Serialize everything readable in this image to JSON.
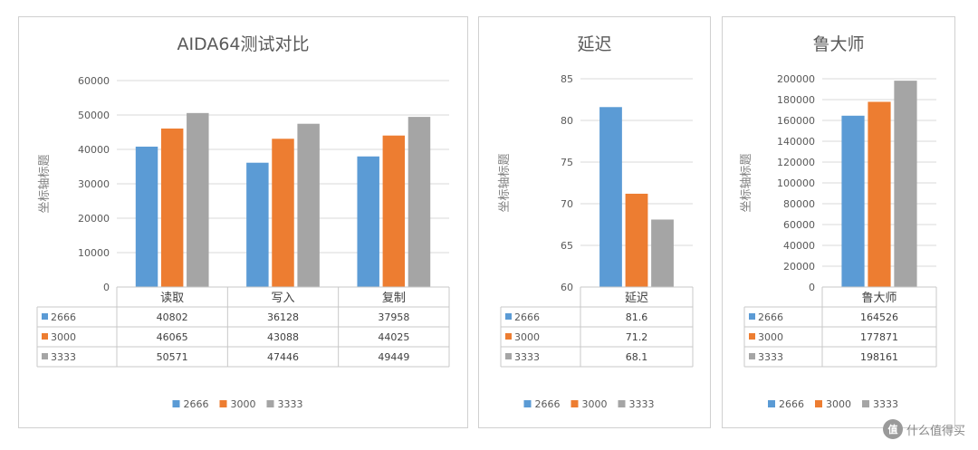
{
  "colors": {
    "s2666": "#5b9bd5",
    "s3000": "#ed7d31",
    "s3333": "#a5a5a5"
  },
  "watermark": {
    "icon": "值",
    "text": "什么值得买"
  },
  "chart_data": [
    {
      "type": "bar",
      "title": "AIDA64测试对比",
      "ylabel": "坐标轴标题",
      "ylim": [
        0,
        60000
      ],
      "yticks": [
        0,
        10000,
        20000,
        30000,
        40000,
        50000,
        60000
      ],
      "categories": [
        "读取",
        "写入",
        "复制"
      ],
      "series": [
        {
          "name": "2666",
          "values": [
            40802,
            36128,
            37958
          ]
        },
        {
          "name": "3000",
          "values": [
            46065,
            43088,
            44025
          ]
        },
        {
          "name": "3333",
          "values": [
            50571,
            47446,
            49449
          ]
        }
      ],
      "grid": true,
      "legend": "bottom",
      "data_table": true
    },
    {
      "type": "bar",
      "title": "延迟",
      "ylabel": "坐标轴标题",
      "ylim": [
        60,
        85
      ],
      "yticks": [
        60,
        65,
        70,
        75,
        80,
        85
      ],
      "categories": [
        "延迟"
      ],
      "series": [
        {
          "name": "2666",
          "values": [
            81.6
          ]
        },
        {
          "name": "3000",
          "values": [
            71.2
          ]
        },
        {
          "name": "3333",
          "values": [
            68.1
          ]
        }
      ],
      "grid": true,
      "legend": "bottom",
      "data_table": true
    },
    {
      "type": "bar",
      "title": "鲁大师",
      "ylabel": "坐标轴标题",
      "ylim": [
        0,
        200000
      ],
      "yticks": [
        0,
        20000,
        40000,
        60000,
        80000,
        100000,
        120000,
        140000,
        160000,
        180000,
        200000
      ],
      "categories": [
        "鲁大师"
      ],
      "series": [
        {
          "name": "2666",
          "values": [
            164526
          ]
        },
        {
          "name": "3000",
          "values": [
            177871
          ]
        },
        {
          "name": "3333",
          "values": [
            198161
          ]
        }
      ],
      "grid": true,
      "legend": "bottom",
      "data_table": true
    }
  ]
}
